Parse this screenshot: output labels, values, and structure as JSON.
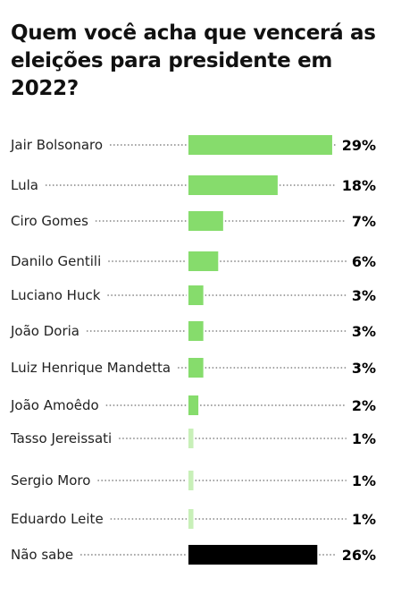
{
  "chart_data": {
    "type": "bar",
    "orientation": "horizontal",
    "title": "Quem você acha que vencerá as eleições para presidente em 2022?",
    "categories": [
      "Jair Bolsonaro",
      "Lula",
      "Ciro Gomes",
      "Danilo Gentili",
      "Luciano Huck",
      "João Doria",
      "Luiz Henrique Mandetta",
      "João Amoêdo",
      "Tasso Jereissati",
      "Sergio Moro",
      "Eduardo Leite",
      "Não sabe"
    ],
    "values": [
      29,
      18,
      7,
      6,
      3,
      3,
      3,
      2,
      1,
      1,
      1,
      26
    ],
    "value_labels": [
      "29%",
      "18%",
      "7%",
      "6%",
      "3%",
      "3%",
      "3%",
      "2%",
      "1%",
      "1%",
      "1%",
      "26%"
    ],
    "colors": {
      "candidate_bar": "#86dc6c",
      "minor_bar": "#c8f0b8",
      "undecided_bar": "#000000",
      "leader": "#444444"
    }
  }
}
